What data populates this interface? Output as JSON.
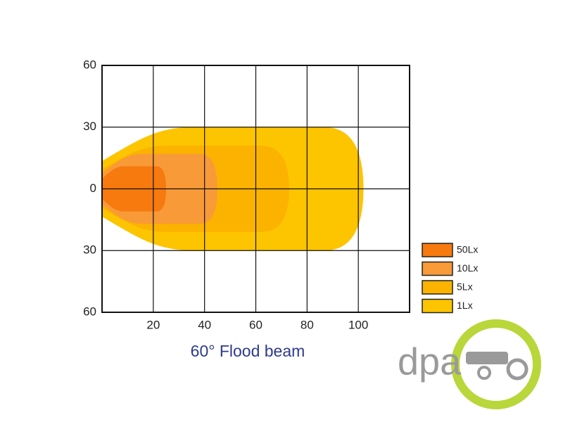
{
  "chart_data": {
    "type": "beam",
    "title": "60°  Flood beam",
    "xlim": [
      0,
      120
    ],
    "ylim": [
      -60,
      60
    ],
    "xticks": [
      20,
      40,
      60,
      80,
      100
    ],
    "yticks": [
      {
        "value": 60,
        "label": "60"
      },
      {
        "value": 30,
        "label": "30"
      },
      0,
      {
        "value": -30,
        "label": "30"
      },
      {
        "value": -60,
        "label": "60"
      }
    ],
    "grid": true,
    "series": [
      {
        "name": "1Lx",
        "color": "#fdc400",
        "reach": 102,
        "half_width": 30
      },
      {
        "name": "5Lx",
        "color": "#fbb300",
        "reach": 73,
        "half_width": 21
      },
      {
        "name": "10Lx",
        "color": "#f99a38",
        "reach": 45,
        "half_width": 17
      },
      {
        "name": "50Lx",
        "color": "#f67a0e",
        "reach": 25,
        "half_width": 11
      }
    ],
    "watermark": "dpa"
  }
}
